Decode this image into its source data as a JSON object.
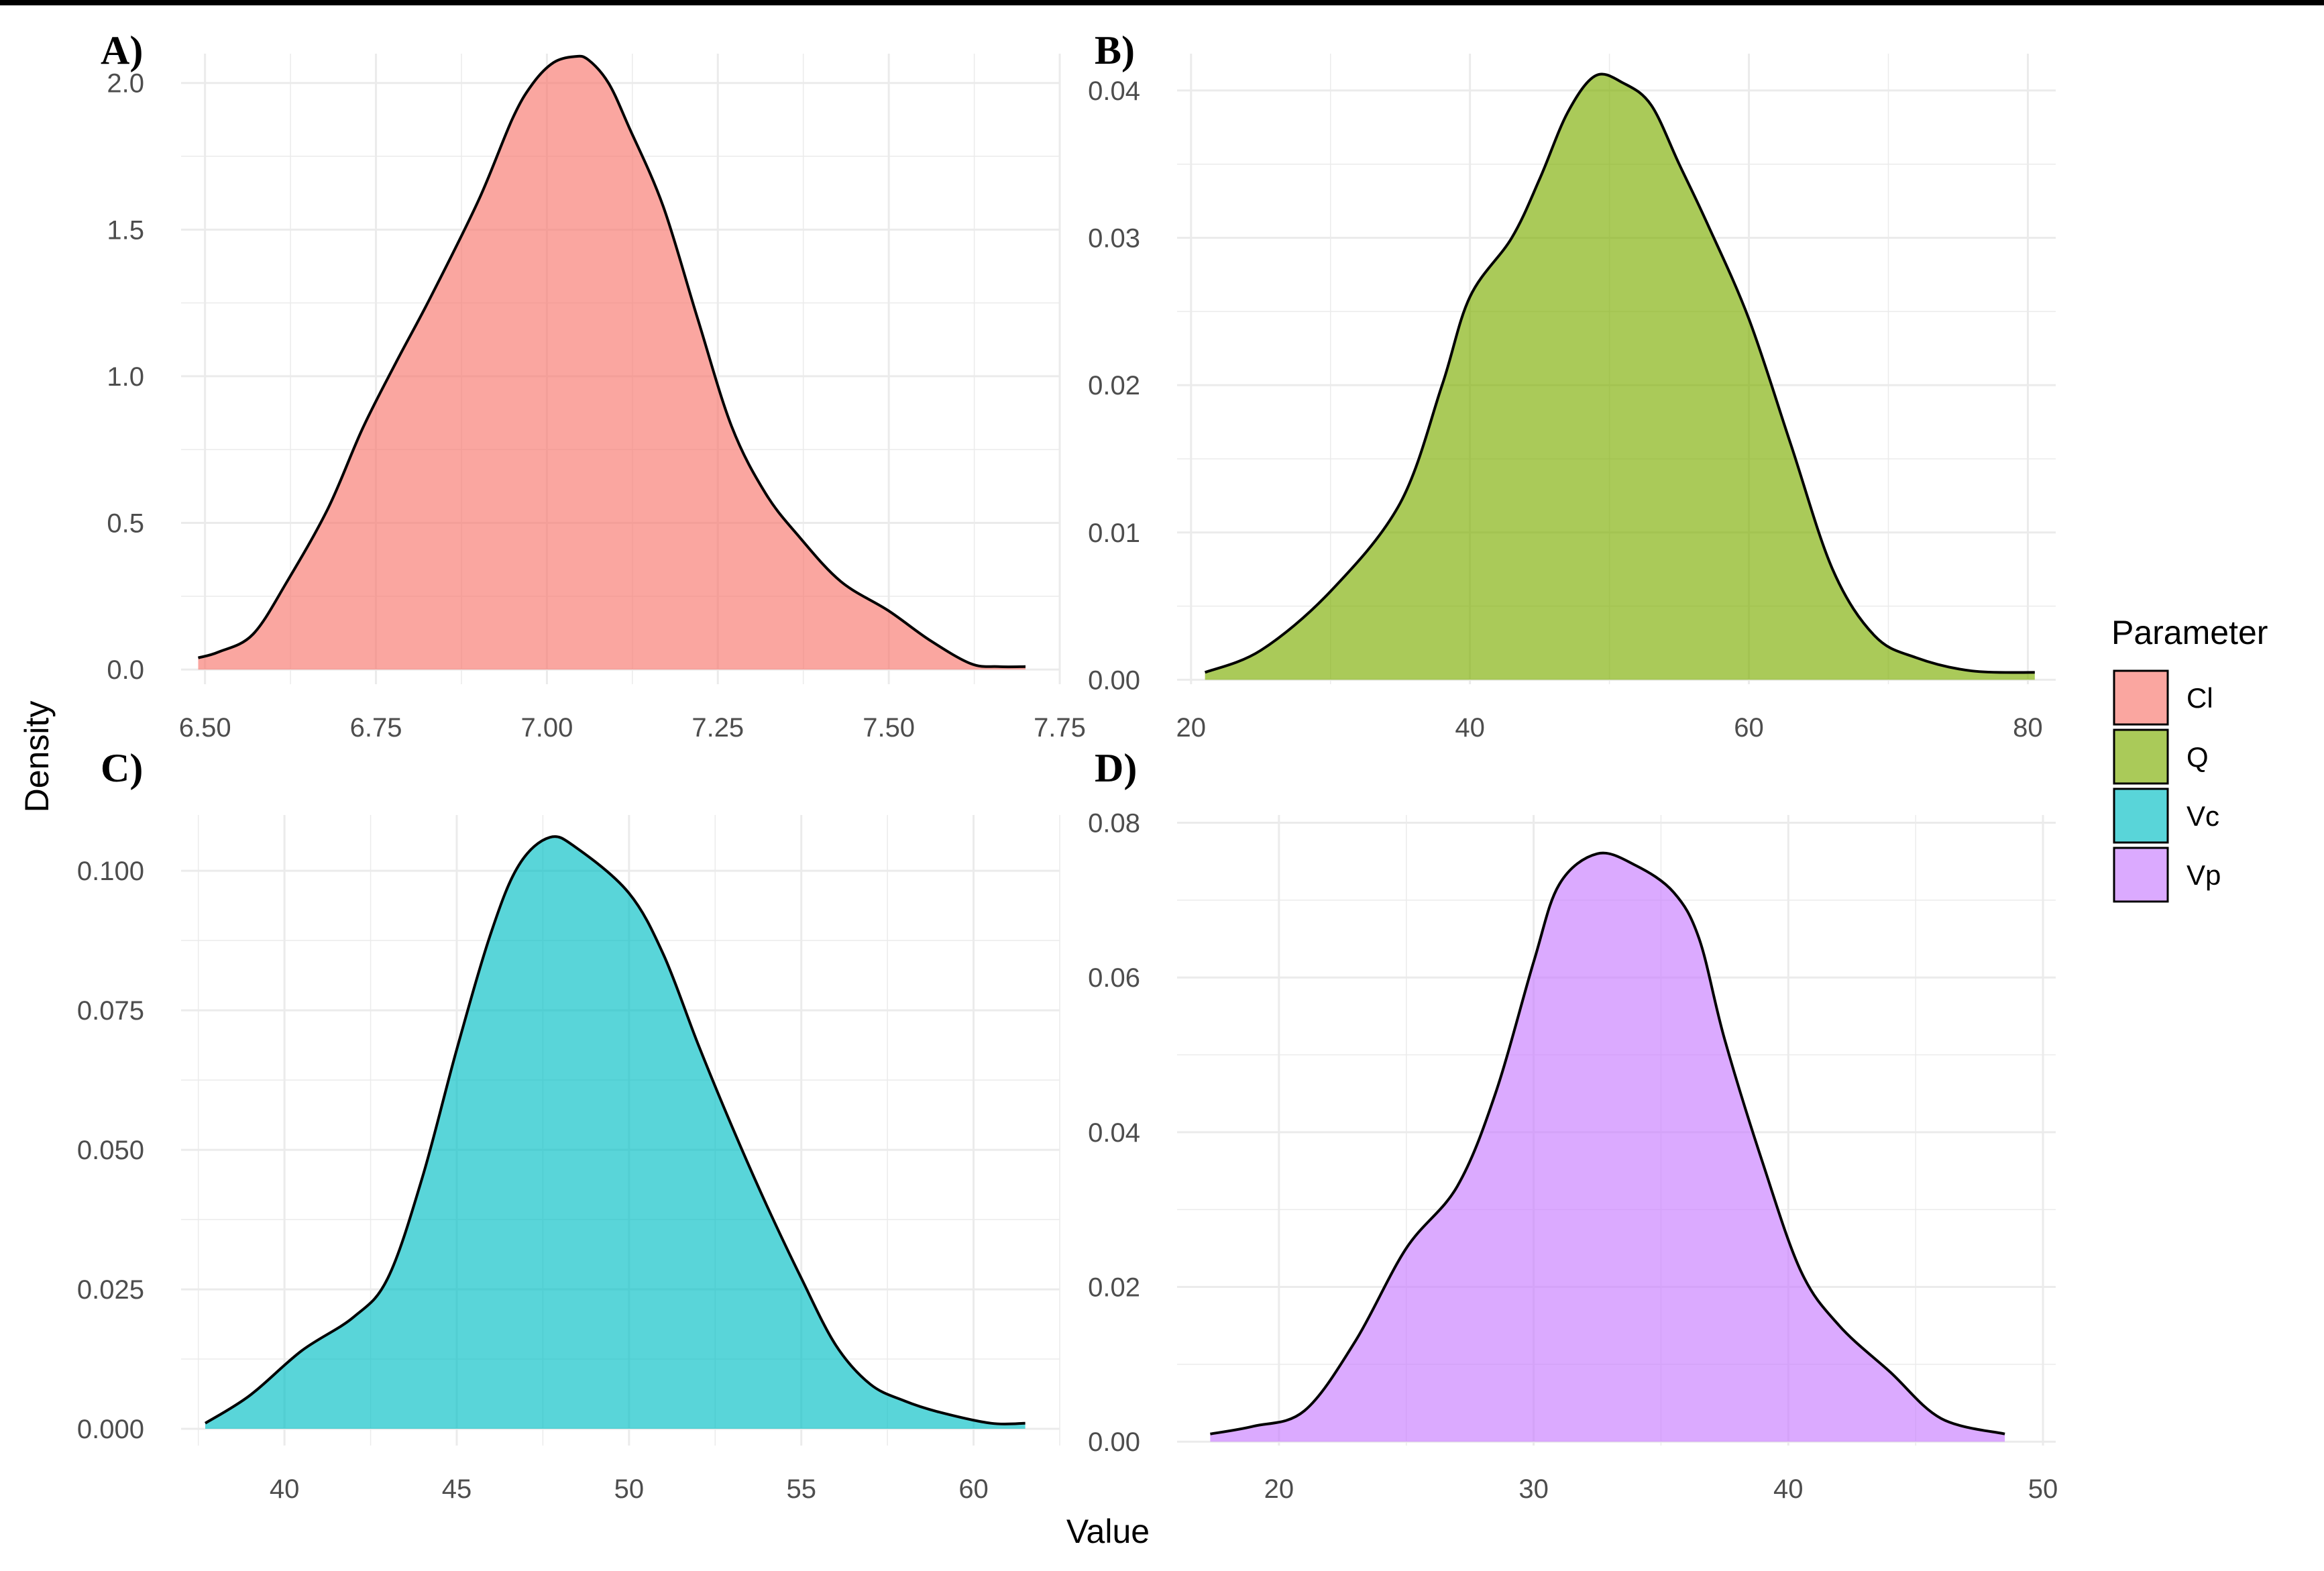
{
  "chart_data": {
    "type": "area",
    "subtype": "density",
    "xlabel": "Value",
    "ylabel": "Density",
    "legend": {
      "title": "Parameter",
      "position": "right",
      "entries": [
        {
          "label": "Cl",
          "color": "#f8766d"
        },
        {
          "label": "Q",
          "color": "#7cae00"
        },
        {
          "label": "Vc",
          "color": "#00bfc4"
        },
        {
          "label": "Vp",
          "color": "#c77cff"
        }
      ]
    },
    "grid": true,
    "panels": [
      {
        "label": "A)",
        "parameter": "Cl",
        "color": "#f8766d",
        "xlim": [
          6.465,
          7.75
        ],
        "ylim": [
          -0.05,
          2.1
        ],
        "x_ticks": [
          6.5,
          6.75,
          7.0,
          7.25,
          7.5,
          7.75
        ],
        "x_tick_labels": [
          "6.50",
          "6.75",
          "7.00",
          "7.25",
          "7.50",
          "7.75"
        ],
        "y_ticks": [
          0,
          0.5,
          1.0,
          1.5,
          2.0
        ],
        "y_tick_labels": [
          "0.0",
          "0.5",
          "1.0",
          "1.5",
          "2.0"
        ],
        "x": [
          6.49,
          6.52,
          6.57,
          6.62,
          6.68,
          6.73,
          6.78,
          6.83,
          6.9,
          6.95,
          6.98,
          7.01,
          7.04,
          7.06,
          7.09,
          7.12,
          7.17,
          7.22,
          7.27,
          7.32,
          7.37,
          7.43,
          7.5,
          7.56,
          7.62,
          7.66,
          7.7
        ],
        "y": [
          0.04,
          0.06,
          0.12,
          0.3,
          0.55,
          0.82,
          1.05,
          1.27,
          1.6,
          1.88,
          2.0,
          2.07,
          2.09,
          2.08,
          2.0,
          1.85,
          1.58,
          1.2,
          0.83,
          0.6,
          0.45,
          0.3,
          0.2,
          0.1,
          0.02,
          0.01,
          0.01
        ]
      },
      {
        "label": "B)",
        "parameter": "Q",
        "color": "#7cae00",
        "xlim": [
          19,
          82
        ],
        "ylim": [
          -0.0003,
          0.0425
        ],
        "x_ticks": [
          20,
          40,
          60,
          80
        ],
        "x_tick_labels": [
          "20",
          "40",
          "60",
          "80"
        ],
        "y_ticks": [
          0,
          0.01,
          0.02,
          0.03,
          0.04
        ],
        "y_tick_labels": [
          "0.00",
          "0.01",
          "0.02",
          "0.03",
          "0.04"
        ],
        "x": [
          21,
          25,
          30,
          35,
          38,
          40,
          43,
          45,
          47,
          49,
          51,
          53,
          55,
          57,
          60,
          63,
          66,
          69,
          72,
          76,
          80.5
        ],
        "y": [
          0.0005,
          0.002,
          0.006,
          0.012,
          0.02,
          0.026,
          0.03,
          0.034,
          0.0385,
          0.041,
          0.0405,
          0.039,
          0.035,
          0.031,
          0.0245,
          0.016,
          0.0075,
          0.003,
          0.0015,
          0.0006,
          0.0005
        ]
      },
      {
        "label": "C)",
        "parameter": "Vc",
        "color": "#00bfc4",
        "xlim": [
          37,
          62.5
        ],
        "ylim": [
          -0.003,
          0.11
        ],
        "x_ticks": [
          40,
          45,
          50,
          55,
          60
        ],
        "x_tick_labels": [
          "40",
          "45",
          "50",
          "55",
          "60"
        ],
        "y_ticks": [
          0,
          0.025,
          0.05,
          0.075,
          0.1
        ],
        "y_tick_labels": [
          "0.000",
          "0.025",
          "0.050",
          "0.075",
          "0.100"
        ],
        "x": [
          37.7,
          39,
          40.5,
          42,
          43,
          44,
          45,
          46,
          46.8,
          47.7,
          48.5,
          50,
          51,
          52,
          53,
          54,
          55,
          56,
          57,
          58,
          59,
          60.5,
          61.5
        ],
        "y": [
          0.001,
          0.006,
          0.014,
          0.02,
          0.027,
          0.045,
          0.068,
          0.089,
          0.101,
          0.106,
          0.104,
          0.096,
          0.085,
          0.069,
          0.054,
          0.04,
          0.027,
          0.015,
          0.008,
          0.005,
          0.003,
          0.001,
          0.001
        ]
      },
      {
        "label": "D)",
        "parameter": "Vp",
        "color": "#c77cff",
        "xlim": [
          16,
          50.5
        ],
        "ylim": [
          -0.0005,
          0.081
        ],
        "x_ticks": [
          20,
          30,
          40,
          50
        ],
        "x_tick_labels": [
          "20",
          "30",
          "40",
          "50"
        ],
        "y_ticks": [
          0,
          0.02,
          0.04,
          0.06,
          0.08
        ],
        "y_tick_labels": [
          "0.00",
          "0.02",
          "0.04",
          "0.06",
          "0.08"
        ],
        "x": [
          17.3,
          19,
          21,
          23,
          25,
          27,
          28.5,
          30,
          31,
          32.5,
          34,
          35.5,
          36.5,
          37.5,
          39,
          40.5,
          42,
          44,
          46,
          48.5
        ],
        "y": [
          0.001,
          0.002,
          0.004,
          0.013,
          0.025,
          0.033,
          0.045,
          0.062,
          0.072,
          0.076,
          0.0745,
          0.071,
          0.065,
          0.052,
          0.036,
          0.022,
          0.015,
          0.009,
          0.003,
          0.001
        ]
      }
    ]
  }
}
